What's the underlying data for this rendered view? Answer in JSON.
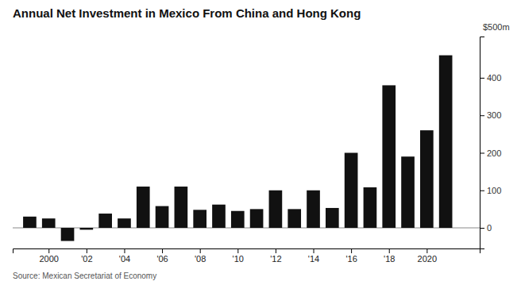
{
  "chart_data": {
    "type": "bar",
    "title": "Annual Net Investment in Mexico From China and Hong Kong",
    "annotations": [
      "$500m",
      "Source: Mexican Secretariat of Economy"
    ],
    "x": [
      1999,
      2000,
      2001,
      2002,
      2003,
      2004,
      2005,
      2006,
      2007,
      2008,
      2009,
      2010,
      2011,
      2012,
      2013,
      2014,
      2015,
      2016,
      2017,
      2018,
      2019,
      2020,
      2021
    ],
    "values": [
      30,
      25,
      -35,
      -5,
      38,
      25,
      110,
      58,
      110,
      48,
      62,
      45,
      50,
      100,
      50,
      100,
      53,
      200,
      108,
      380,
      190,
      260,
      460
    ],
    "color": "#111111",
    "xlim": [
      1998.1,
      2022.8
    ],
    "xticks": [
      2000,
      {
        "value": 2002,
        "label": "'02"
      },
      {
        "value": 2004,
        "label": "'04"
      },
      {
        "value": 2006,
        "label": "'06"
      },
      {
        "value": 2008,
        "label": "'08"
      },
      {
        "value": 2010,
        "label": "'10"
      },
      {
        "value": 2012,
        "label": "'12"
      },
      {
        "value": 2014,
        "label": "'14"
      },
      {
        "value": 2016,
        "label": "'16"
      },
      {
        "value": 2018,
        "label": "'18"
      },
      2020
    ],
    "ylim": [
      -55,
      510
    ],
    "yticks": [
      0,
      100,
      200,
      300,
      400
    ],
    "grid": false
  }
}
